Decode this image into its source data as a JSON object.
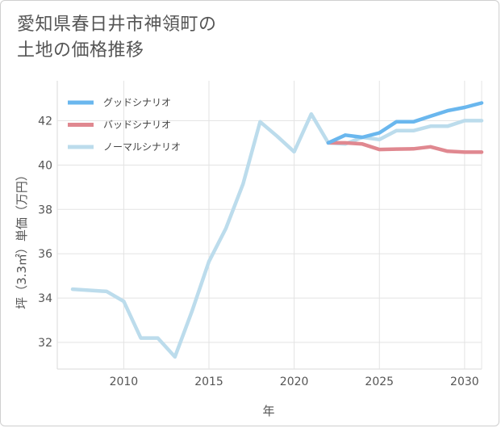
{
  "title": {
    "line1": "愛知県春日井市神領町の",
    "line2": "土地の価格推移"
  },
  "chart_data": {
    "type": "line",
    "xlabel": "年",
    "ylabel": "坪（3.3㎡）単価（万円）",
    "xlim": [
      2006.1,
      2031
    ],
    "ylim": [
      30.8,
      43.8
    ],
    "x_ticks": [
      2010,
      2015,
      2020,
      2025,
      2030
    ],
    "y_ticks": [
      32,
      34,
      36,
      38,
      40,
      42
    ],
    "grid": true,
    "legend_position": "top-left",
    "series": [
      {
        "name": "グッドシナリオ",
        "color": "#6ab7ee",
        "x": [
          2022,
          2023,
          2024,
          2025,
          2026,
          2027,
          2028,
          2029,
          2030,
          2031
        ],
        "y": [
          41.0,
          41.35,
          41.25,
          41.45,
          41.95,
          41.95,
          42.2,
          42.45,
          42.6,
          42.8
        ]
      },
      {
        "name": "バッドシナリオ",
        "color": "#e08890",
        "x": [
          2022,
          2023,
          2024,
          2025,
          2026,
          2027,
          2028,
          2029,
          2030,
          2031
        ],
        "y": [
          41.0,
          41.0,
          40.95,
          40.7,
          40.72,
          40.73,
          40.82,
          40.62,
          40.58,
          40.58
        ]
      },
      {
        "name": "ノーマルシナリオ",
        "color": "#bcdcec",
        "x": [
          2007,
          2008,
          2009,
          2010,
          2011,
          2012,
          2013,
          2014,
          2015,
          2016,
          2017,
          2018,
          2019,
          2020,
          2021,
          2022,
          2023,
          2024,
          2025,
          2026,
          2027,
          2028,
          2029,
          2030,
          2031
        ],
        "y": [
          34.4,
          34.35,
          34.3,
          33.85,
          32.2,
          32.2,
          31.35,
          33.4,
          35.65,
          37.15,
          39.15,
          41.95,
          41.3,
          40.6,
          42.3,
          41.0,
          40.95,
          41.25,
          41.15,
          41.55,
          41.55,
          41.75,
          41.75,
          42.0,
          42.0
        ]
      }
    ]
  }
}
